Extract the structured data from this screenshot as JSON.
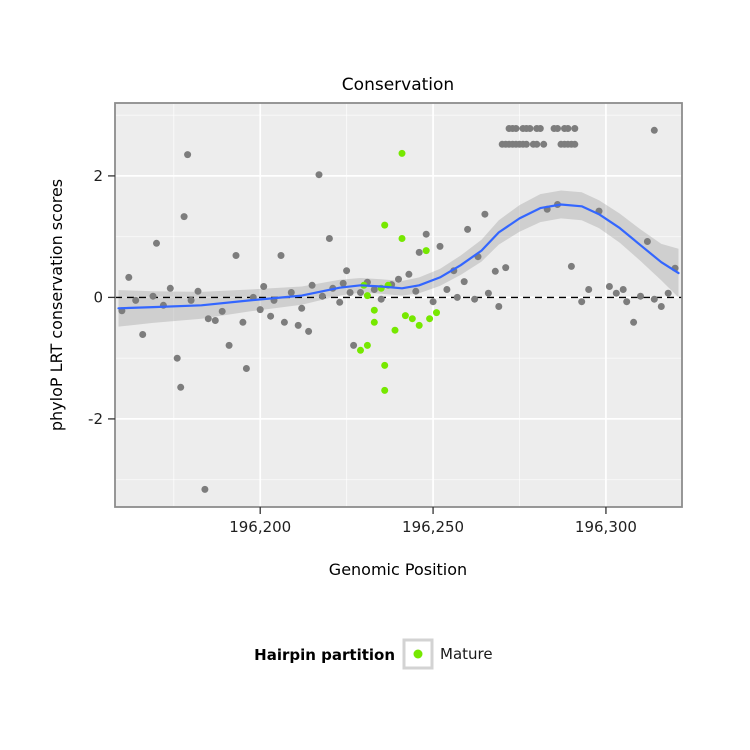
{
  "colors": {
    "point_gray": "#7d7d7d",
    "point_mature": "#76E800",
    "smooth_line": "#3366FF",
    "ribbon": "#999999",
    "panel_bg": "#ededed",
    "panel_border": "#8c8c8c",
    "grid_major": "#ffffff",
    "grid_minor": "#f7f7f7",
    "ref_line": "#000000",
    "tick": "#333333"
  },
  "chart_data": {
    "type": "scatter",
    "title": "Conservation",
    "x_axis": {
      "label": "Genomic Position",
      "domain": [
        196158,
        196322
      ],
      "ticks": [
        196200,
        196250,
        196300
      ],
      "tick_labels": [
        "196,200",
        "196,250",
        "196,300"
      ],
      "minor_ticks": [
        196175,
        196225,
        196275
      ]
    },
    "y_axis": {
      "label": "phyloP LRT conservation scores",
      "domain": [
        -3.45,
        3.2
      ],
      "ticks": [
        -2,
        0,
        2
      ],
      "tick_labels": [
        "-2",
        "0",
        "2"
      ],
      "minor_ticks": [
        -3,
        -1,
        1,
        3
      ]
    },
    "reference_line_y": 0,
    "legend": {
      "title": "Hairpin partition",
      "items": [
        {
          "label": "Mature"
        }
      ]
    },
    "series": [
      {
        "name": "other",
        "points": [
          [
            196160,
            -0.22
          ],
          [
            196162,
            0.33
          ],
          [
            196164,
            -0.05
          ],
          [
            196166,
            -0.61
          ],
          [
            196169,
            0.02
          ],
          [
            196170,
            0.89
          ],
          [
            196172,
            -0.13
          ],
          [
            196174,
            0.15
          ],
          [
            196176,
            -1.0
          ],
          [
            196177,
            -1.48
          ],
          [
            196178,
            1.33
          ],
          [
            196179,
            2.35
          ],
          [
            196180,
            -0.05
          ],
          [
            196182,
            0.1
          ],
          [
            196184,
            -3.16
          ],
          [
            196185,
            -0.35
          ],
          [
            196187,
            -0.38
          ],
          [
            196189,
            -0.23
          ],
          [
            196191,
            -0.79
          ],
          [
            196193,
            0.69
          ],
          [
            196195,
            -0.41
          ],
          [
            196196,
            -1.17
          ],
          [
            196198,
            0.0
          ],
          [
            196200,
            -0.2
          ],
          [
            196201,
            0.18
          ],
          [
            196203,
            -0.31
          ],
          [
            196204,
            -0.05
          ],
          [
            196206,
            0.69
          ],
          [
            196207,
            -0.41
          ],
          [
            196209,
            0.08
          ],
          [
            196211,
            -0.46
          ],
          [
            196212,
            -0.18
          ],
          [
            196214,
            -0.56
          ],
          [
            196215,
            0.2
          ],
          [
            196217,
            2.02
          ],
          [
            196218,
            0.02
          ],
          [
            196220,
            0.97
          ],
          [
            196221,
            0.15
          ],
          [
            196223,
            -0.08
          ],
          [
            196224,
            0.23
          ],
          [
            196225,
            0.44
          ],
          [
            196226,
            0.08
          ],
          [
            196227,
            -0.79
          ],
          [
            196229,
            0.08
          ],
          [
            196231,
            0.25
          ],
          [
            196233,
            0.13
          ],
          [
            196235,
            -0.03
          ],
          [
            196238,
            0.21
          ],
          [
            196240,
            0.3
          ],
          [
            196243,
            0.38
          ],
          [
            196245,
            0.1
          ],
          [
            196246,
            0.74
          ],
          [
            196248,
            1.04
          ],
          [
            196250,
            -0.07
          ],
          [
            196252,
            0.84
          ],
          [
            196254,
            0.13
          ],
          [
            196256,
            0.44
          ],
          [
            196257,
            0.0
          ],
          [
            196259,
            0.26
          ],
          [
            196260,
            1.12
          ],
          [
            196262,
            -0.03
          ],
          [
            196263,
            0.67
          ],
          [
            196265,
            1.37
          ],
          [
            196266,
            0.07
          ],
          [
            196268,
            0.43
          ],
          [
            196269,
            -0.15
          ],
          [
            196271,
            0.49
          ],
          [
            196283,
            1.45
          ],
          [
            196286,
            1.53
          ],
          [
            196290,
            0.51
          ],
          [
            196293,
            -0.07
          ],
          [
            196295,
            0.13
          ],
          [
            196298,
            1.42
          ],
          [
            196301,
            0.18
          ],
          [
            196303,
            0.07
          ],
          [
            196305,
            0.13
          ],
          [
            196306,
            -0.07
          ],
          [
            196308,
            -0.41
          ],
          [
            196310,
            0.02
          ],
          [
            196312,
            0.92
          ],
          [
            196314,
            -0.03
          ],
          [
            196316,
            -0.15
          ],
          [
            196318,
            0.07
          ],
          [
            196320,
            0.48
          ],
          [
            196272,
            2.78
          ],
          [
            196273,
            2.78
          ],
          [
            196274,
            2.78
          ],
          [
            196276,
            2.78
          ],
          [
            196277,
            2.78
          ],
          [
            196278,
            2.78
          ],
          [
            196280,
            2.78
          ],
          [
            196281,
            2.78
          ],
          [
            196285,
            2.78
          ],
          [
            196286,
            2.78
          ],
          [
            196288,
            2.78
          ],
          [
            196289,
            2.78
          ],
          [
            196291,
            2.78
          ],
          [
            196270,
            2.52
          ],
          [
            196271,
            2.52
          ],
          [
            196272,
            2.52
          ],
          [
            196273,
            2.52
          ],
          [
            196274,
            2.52
          ],
          [
            196275,
            2.52
          ],
          [
            196276,
            2.52
          ],
          [
            196277,
            2.52
          ],
          [
            196279,
            2.52
          ],
          [
            196280,
            2.52
          ],
          [
            196282,
            2.52
          ],
          [
            196287,
            2.52
          ],
          [
            196288,
            2.52
          ],
          [
            196289,
            2.52
          ],
          [
            196290,
            2.52
          ],
          [
            196291,
            2.52
          ],
          [
            196314,
            2.75
          ]
        ]
      },
      {
        "name": "Mature",
        "points": [
          [
            196229,
            -0.87
          ],
          [
            196230,
            0.2
          ],
          [
            196231,
            0.03
          ],
          [
            196231,
            -0.79
          ],
          [
            196233,
            -0.21
          ],
          [
            196233,
            -0.41
          ],
          [
            196235,
            0.15
          ],
          [
            196236,
            1.19
          ],
          [
            196236,
            -1.12
          ],
          [
            196236,
            -1.53
          ],
          [
            196237,
            0.2
          ],
          [
            196239,
            -0.54
          ],
          [
            196241,
            2.37
          ],
          [
            196241,
            0.97
          ],
          [
            196242,
            -0.3
          ],
          [
            196244,
            -0.35
          ],
          [
            196246,
            -0.46
          ],
          [
            196248,
            0.77
          ],
          [
            196249,
            -0.35
          ],
          [
            196251,
            -0.25
          ]
        ]
      }
    ],
    "smooth": {
      "x": [
        196159,
        196169,
        196183,
        196197,
        196212,
        196223,
        196229,
        196235,
        196241,
        196246,
        196252,
        196258,
        196264,
        196269,
        196275,
        196281,
        196287,
        196293,
        196298,
        196304,
        196310,
        196316,
        196321
      ],
      "y": [
        -0.18,
        -0.16,
        -0.13,
        -0.05,
        0.03,
        0.16,
        0.2,
        0.18,
        0.15,
        0.2,
        0.33,
        0.53,
        0.77,
        1.07,
        1.3,
        1.47,
        1.53,
        1.5,
        1.37,
        1.14,
        0.86,
        0.58,
        0.4
      ],
      "half_width": [
        0.3,
        0.26,
        0.22,
        0.18,
        0.15,
        0.13,
        0.12,
        0.12,
        0.12,
        0.13,
        0.14,
        0.16,
        0.18,
        0.2,
        0.22,
        0.23,
        0.23,
        0.23,
        0.23,
        0.24,
        0.26,
        0.3,
        0.4
      ]
    }
  }
}
